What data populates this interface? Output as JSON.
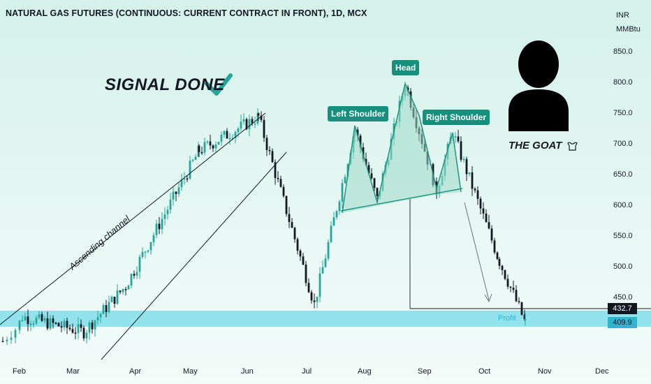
{
  "header": {
    "title": "NATURAL GAS FUTURES (CONTINUOUS: CURRENT CONTRACT IN FRONT), 1D, MCX",
    "currency": "INR",
    "unit": "MMBtu"
  },
  "annotations": {
    "signal_text": "SIGNAL DONE",
    "goat_text": "THE GOAT",
    "left_shoulder": "Left Shoulder",
    "head": "Head",
    "right_shoulder": "Right Shoulder",
    "channel": "Ascending channel",
    "profit": "Profit"
  },
  "price_tags": {
    "target": "432.7",
    "last": "409.9"
  },
  "colors": {
    "up": "#26a69a",
    "down": "#131722",
    "zone": "#80deea",
    "pattern_fill": "#9ed8c9",
    "label_bg": "#14907c"
  },
  "chart_data": {
    "type": "candlestick",
    "title": "NATURAL GAS FUTURES (CONTINUOUS: CURRENT CONTRACT IN FRONT), 1D, MCX",
    "y_axis": {
      "ticks": [
        450,
        500,
        550,
        600,
        650,
        700,
        750,
        800,
        850
      ],
      "unit": "MMBtu",
      "currency": "INR"
    },
    "x_axis": {
      "ticks": [
        "Feb",
        "Mar",
        "Apr",
        "May",
        "Jun",
        "Jul",
        "Aug",
        "Sep",
        "Oct",
        "Nov",
        "Dec"
      ]
    },
    "support_zone": [
      409.9,
      432.7
    ],
    "key_swings": [
      {
        "month": "Feb",
        "price": 420
      },
      {
        "month": "Mar",
        "price": 395
      },
      {
        "month": "Apr",
        "price": 470
      },
      {
        "month": "May",
        "price": 690
      },
      {
        "month": "Jun",
        "price": 745
      },
      {
        "month": "Jul",
        "price": 440
      },
      {
        "month": "Aug",
        "price": 725
      },
      {
        "month": "Aug",
        "price": 610
      },
      {
        "month": "Aug",
        "price": 800
      },
      {
        "month": "Sep",
        "price": 625
      },
      {
        "month": "Sep",
        "price": 720
      },
      {
        "month": "Oct",
        "price": 510
      },
      {
        "month": "Oct",
        "price": 409.9
      }
    ],
    "last_price": 409.9,
    "target_price": 432.7,
    "grid": false
  }
}
